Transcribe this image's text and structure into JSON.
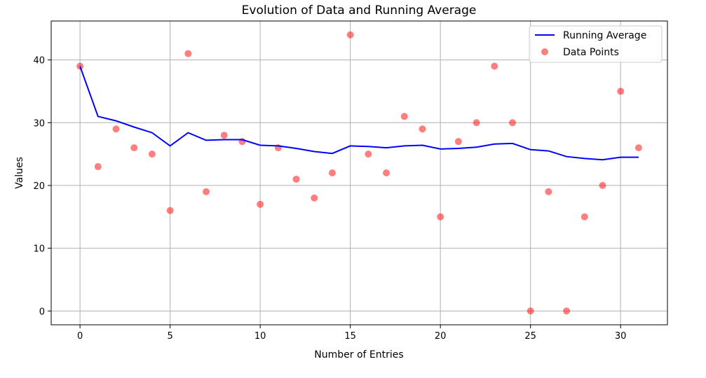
{
  "chart_data": {
    "type": "line+scatter",
    "title": "Evolution of Data and Running Average",
    "xlabel": "Number of Entries",
    "ylabel": "Values",
    "xlim": [
      -1.6,
      32.6
    ],
    "ylim": [
      -2.2,
      46.2
    ],
    "xticks": [
      0,
      5,
      10,
      15,
      20,
      25,
      30
    ],
    "yticks": [
      0,
      10,
      20,
      30,
      40
    ],
    "grid": true,
    "legend_position": "top-right",
    "x": [
      0,
      1,
      2,
      3,
      4,
      5,
      6,
      7,
      8,
      9,
      10,
      11,
      12,
      13,
      14,
      15,
      16,
      17,
      18,
      19,
      20,
      21,
      22,
      23,
      24,
      25,
      26,
      27,
      28,
      29,
      30,
      31
    ],
    "series": [
      {
        "name": "Running Average",
        "kind": "line",
        "color": "#0000ff",
        "values": [
          39.0,
          31.0,
          30.3,
          29.3,
          28.4,
          26.3,
          28.4,
          27.2,
          27.3,
          27.3,
          26.4,
          26.3,
          25.9,
          25.4,
          25.1,
          26.3,
          26.2,
          26.0,
          26.3,
          26.4,
          25.8,
          25.9,
          26.1,
          26.6,
          26.7,
          25.7,
          25.5,
          24.6,
          24.3,
          24.1,
          24.5,
          24.5
        ]
      },
      {
        "name": "Data Points",
        "kind": "scatter",
        "color": "#ff0000",
        "opacity": 0.5,
        "values": [
          39,
          23,
          29,
          26,
          25,
          16,
          41,
          19,
          28,
          27,
          17,
          26,
          21,
          18,
          22,
          44,
          25,
          22,
          31,
          29,
          15,
          27,
          30,
          39,
          30,
          0,
          19,
          0,
          15,
          20,
          35,
          26
        ]
      }
    ]
  }
}
